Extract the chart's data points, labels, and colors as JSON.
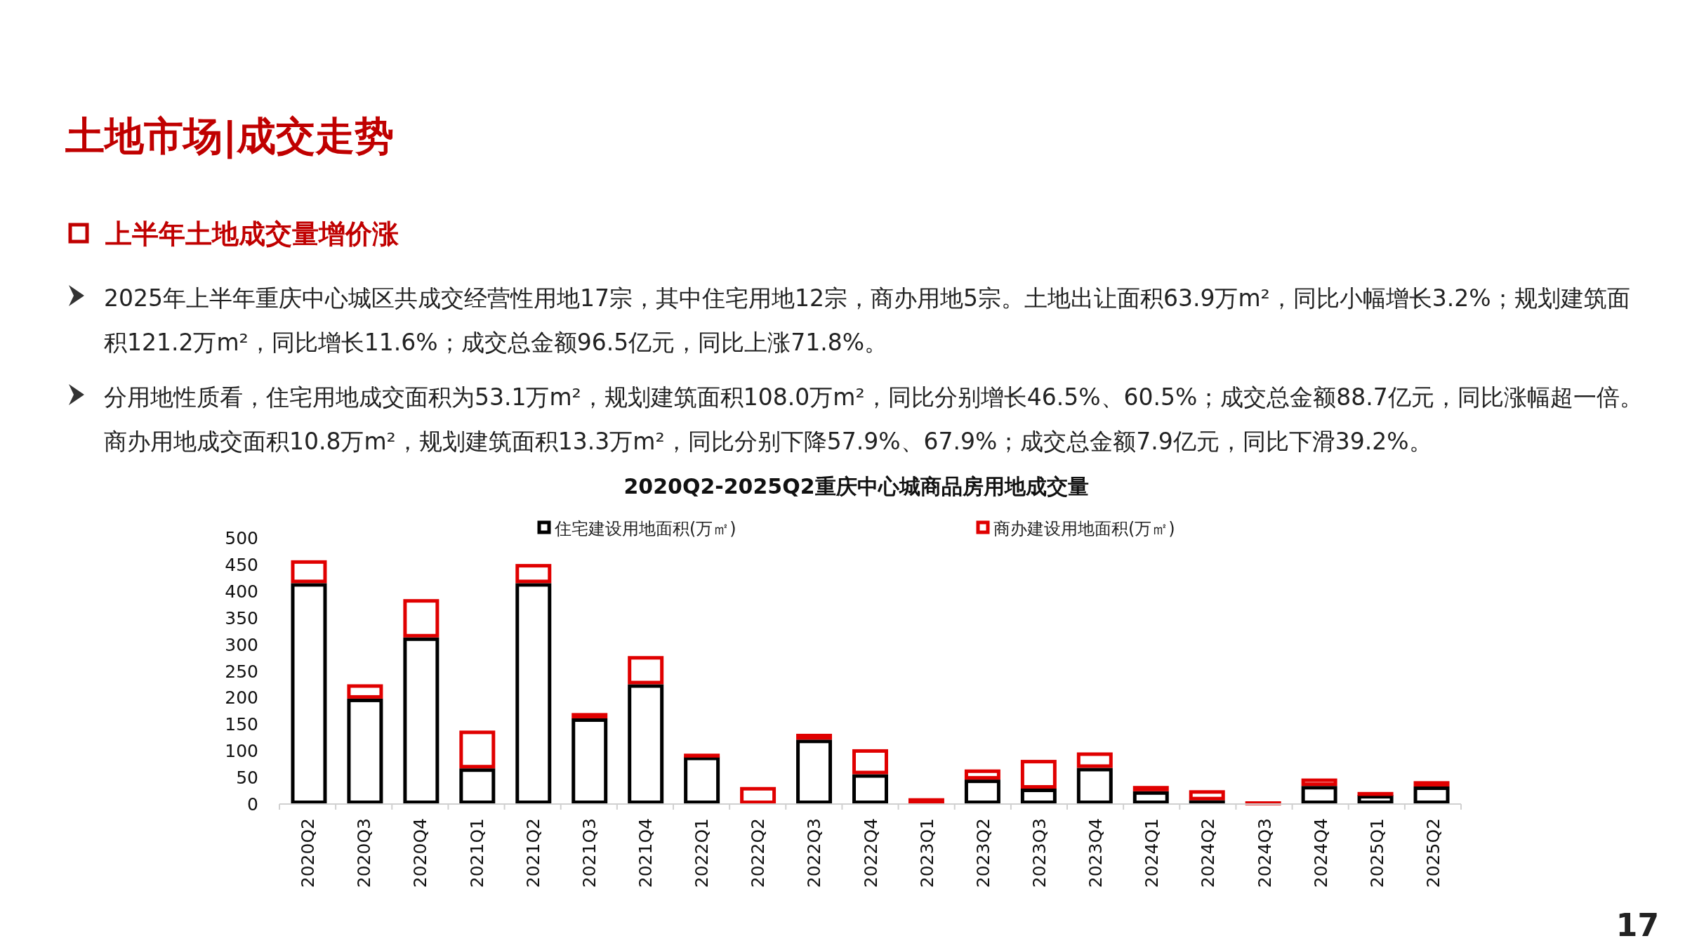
{
  "chart_data": {
    "type": "bar",
    "title": "2020Q2-2025Q2重庆中心城商品房用地成交量",
    "annotations": [
      "土地市场|成交走势",
      "上半年土地成交量增价涨",
      "2025年上半年重庆中心城区共成交经营性用地17宗，其中住宅用地12宗，商办用地5宗。土地出让面积63.9万m²，同比小幅增长3.2%；规划建筑面积121.2万m²，同比增长11.6%；成交总金额96.5亿元，同比上涨71.8%。",
      "分用地性质看，住宅用地成交面积为53.1万m²，规划建筑面积108.0万m²，同比分别增长46.5%、60.5%；成交总金额88.7亿元，同比涨幅超一倍。商办用地成交面积10.8万m²，规划建筑面积13.3万m²，同比分别下降57.9%、67.9%；成交总金额7.9亿元，同比下滑39.2%。",
      "17"
    ],
    "categories": [
      "2020Q2",
      "2020Q3",
      "2020Q4",
      "2021Q1",
      "2021Q2",
      "2021Q3",
      "2021Q4",
      "2022Q1",
      "2022Q2",
      "2022Q3",
      "2022Q4",
      "2023Q1",
      "2023Q2",
      "2023Q3",
      "2023Q4",
      "2024Q1",
      "2024Q2",
      "2024Q3",
      "2024Q4",
      "2025Q1",
      "2025Q2"
    ],
    "stacked": true,
    "ylim": [
      0,
      500
    ],
    "yticks": [
      0,
      50,
      100,
      150,
      200,
      250,
      300,
      350,
      400,
      450,
      500
    ],
    "grid": false,
    "legend": "top",
    "series": [
      {
        "name": "住宅建设用地面积(万㎡)",
        "color": "#000000",
        "values": [
          415,
          198,
          313,
          67,
          415,
          161,
          225,
          89,
          0,
          121,
          56,
          0,
          46,
          29,
          68,
          24,
          7,
          0,
          34,
          17,
          33
        ]
      },
      {
        "name": "商办建设用地面积(万㎡)",
        "color": "#e00000",
        "values": [
          43,
          27,
          72,
          71,
          36,
          10,
          53,
          4,
          32,
          11,
          47,
          11,
          19,
          54,
          29,
          10,
          19,
          3,
          14,
          4,
          10
        ]
      }
    ]
  }
}
